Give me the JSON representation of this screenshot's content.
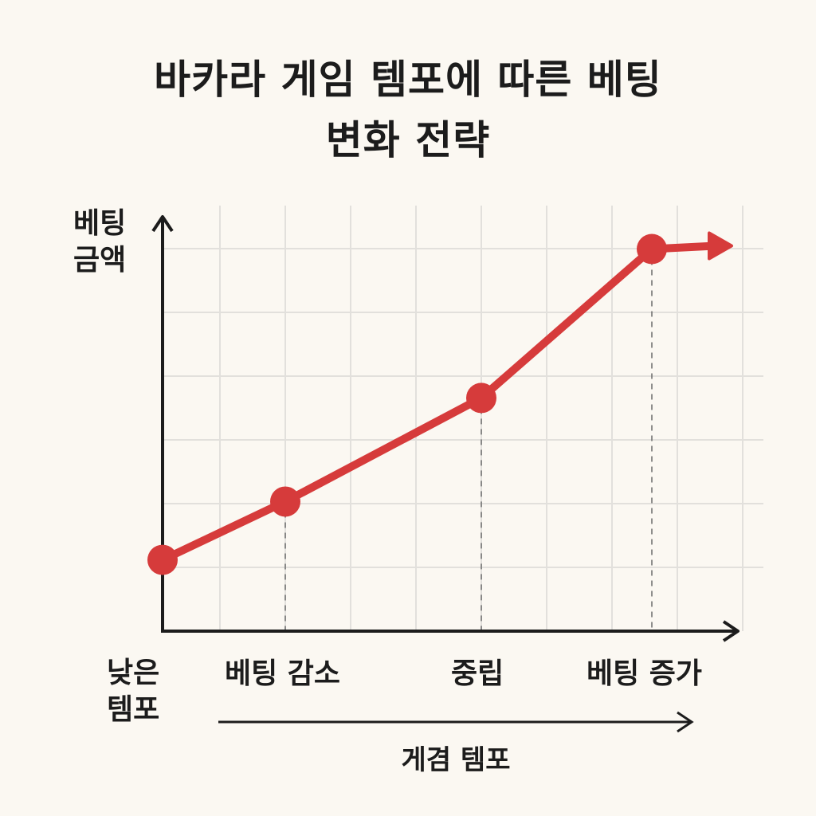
{
  "chart_data": {
    "type": "line",
    "title_lines": [
      "바카라 게임 템포에 따른 베팅",
      "변화 전략"
    ],
    "ylabel_lines": [
      "베팅",
      "금액"
    ],
    "xlabel": "게겸 템포",
    "categories": [
      "낮은 템포",
      "베팅 감소",
      "중립",
      "베팅 증가"
    ],
    "values": [
      1.1,
      2.0,
      3.6,
      5.9
    ],
    "ylim": [
      0,
      6.3
    ],
    "grid": true,
    "line_color": "#d63b3b",
    "grid_color": "#e2e0dc",
    "axis_color": "#1c1c1c"
  }
}
